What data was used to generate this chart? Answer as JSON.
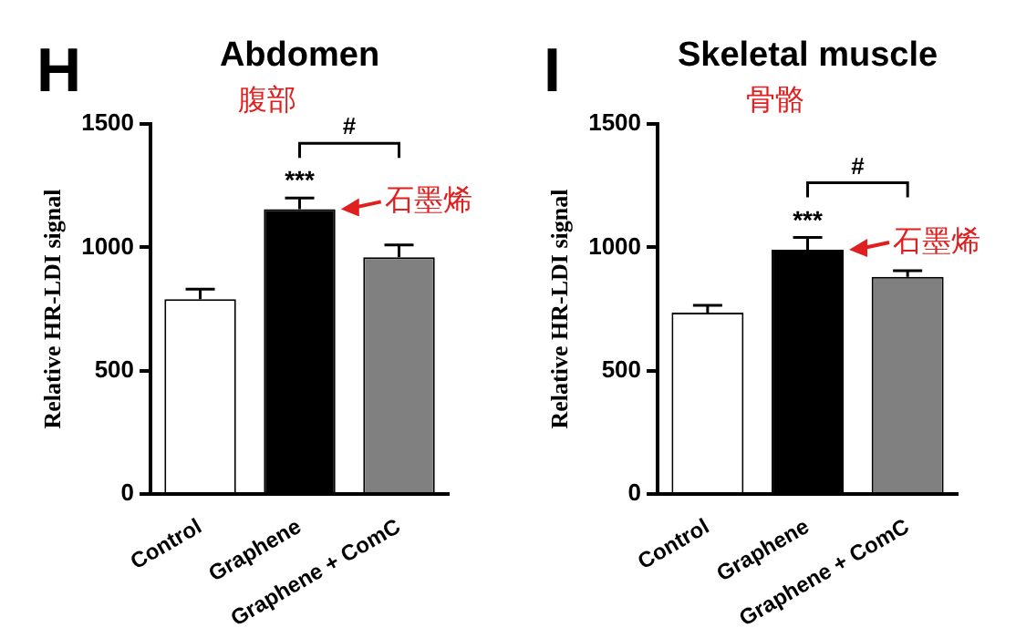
{
  "chart_data": [
    {
      "type": "bar",
      "title": "Abdomen",
      "subtitle": "腹部",
      "ylabel": "Relative HR-LDI signal",
      "categories": [
        "Control",
        "Graphene",
        "Graphene + ComC"
      ],
      "values": [
        790,
        1155,
        960
      ],
      "colors": [
        "#ffffff",
        "#000000",
        "#808080"
      ],
      "errors": [
        [
          790,
          830
        ],
        [
          1155,
          1200
        ],
        [
          960,
          1010
        ]
      ],
      "ylim": [
        0,
        1500
      ],
      "yticks": [
        0,
        500,
        1000,
        1500
      ],
      "grid": false,
      "legend": false,
      "annotations": [
        "H",
        "#",
        {
          "text": "***",
          "x": "Graphene",
          "y": 1200
        },
        {
          "text": "石墨烯",
          "x": "Graphene",
          "y": 1155
        }
      ]
    },
    {
      "type": "bar",
      "title": "Skeletal muscle",
      "subtitle": "骨骼",
      "ylabel": "Relative HR-LDI signal",
      "categories": [
        "Control",
        "Graphene",
        "Graphene + ComC"
      ],
      "values": [
        735,
        990,
        880
      ],
      "colors": [
        "#ffffff",
        "#000000",
        "#808080"
      ],
      "errors": [
        [
          735,
          765
        ],
        [
          990,
          1040
        ],
        [
          880,
          905
        ]
      ],
      "ylim": [
        0,
        1500
      ],
      "yticks": [
        0,
        500,
        1000,
        1500
      ],
      "grid": false,
      "legend": false,
      "annotations": [
        "I",
        "#",
        {
          "text": "***",
          "x": "Graphene",
          "y": 1040
        },
        {
          "text": "石墨烯",
          "x": "Graphene",
          "y": 990
        }
      ]
    }
  ]
}
